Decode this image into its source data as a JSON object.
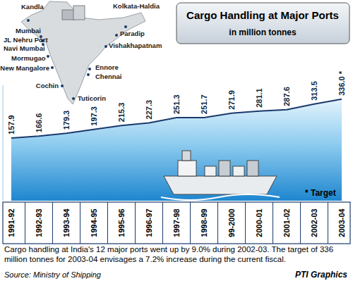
{
  "chart_data": {
    "type": "area",
    "title": "Cargo Handling at Major Ports",
    "subtitle": "in million tonnes",
    "categories": [
      "1991-92",
      "1992-93",
      "1993-94",
      "1994-95",
      "1995-96",
      "1996-97",
      "1997-98",
      "1998-99",
      "99-2000",
      "2000-01",
      "2001-02",
      "2002-03",
      "2003-04"
    ],
    "values": [
      157.9,
      166.6,
      179.3,
      197.3,
      215.3,
      227.3,
      251.3,
      251.7,
      271.9,
      281.1,
      287.6,
      313.5,
      336.0
    ],
    "value_labels": [
      "157.9",
      "166.6",
      "179.3",
      "197.3",
      "215.3",
      "227.3",
      "251.3",
      "251.7",
      "271.9",
      "281.1",
      "287.6",
      "313.5",
      "336.0 *"
    ],
    "data_labels": true,
    "color": "#1b3a6b",
    "ylim": [
      -130,
      400
    ],
    "tick_labels": "x",
    "annotations": [
      "* Target"
    ],
    "ports": [
      "Kandla",
      "Kolkata-Haldia",
      "Mumbai",
      "JL Nehru Port",
      "Navi Mumbai",
      "Paradip",
      "Vishakhapatnam",
      "Mormugao",
      "New Mangalore",
      "Ennore",
      "Chennai",
      "Cochin",
      "Tuticorin"
    ],
    "caption": "Cargo handling at India's 12 major ports went up by 9.0% during 2002-03. The target of 336 million tonnes for 2003-04 envisages a 7.2% increase during the current fiscal.",
    "source": "Source: Ministry of Shipping",
    "credit": "PTI Graphics"
  }
}
